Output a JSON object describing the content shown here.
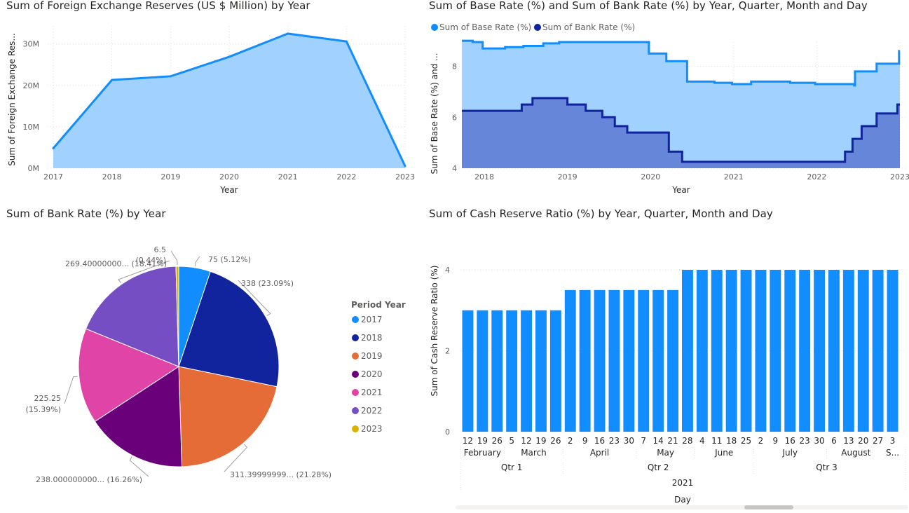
{
  "charts": [
    {
      "title": "Sum of Foreign Exchange Reserves (US $ Million) by Year",
      "xlabel": "Year",
      "ylabel": "Sum of Foreign Exchange Res..."
    },
    {
      "title": "Sum of Base Rate (%) and Sum of Bank Rate (%) by Year, Quarter, Month and Day",
      "xlabel": "Year",
      "ylabel": "Sum of Base Rate (%) and ...",
      "legend": [
        "Sum of Base Rate (%)",
        "Sum of Bank Rate (%)"
      ]
    },
    {
      "title": "Sum of Bank Rate (%) by Year",
      "legend_title": "Period Year"
    },
    {
      "title": "Sum of Cash Reserve Ratio (%) by Year, Quarter, Month and Day",
      "xlabel": "Day",
      "ylabel": "Sum of Cash Reserve Ratio (%)"
    }
  ],
  "chart_data": [
    {
      "type": "area",
      "title": "Sum of Foreign Exchange Reserves (US $ Million) by Year",
      "x": [
        "2017",
        "2018",
        "2019",
        "2020",
        "2021",
        "2022",
        "2023"
      ],
      "y_ticks": [
        "0M",
        "10M",
        "20M",
        "30M"
      ],
      "series": [
        {
          "values": [
            4800000,
            21300000,
            22200000,
            26900000,
            32500000,
            30600000,
            500000
          ]
        }
      ],
      "xlabel": "Year",
      "ylabel": "Sum of Foreign Exchange Res...",
      "ylim": [
        0,
        33000000
      ],
      "colors": {
        "line": "#118DFF",
        "fill": "#A0D1FF"
      }
    },
    {
      "type": "area",
      "title": "Sum of Base Rate (%) and Sum of Bank Rate (%) by Year, Quarter, Month and Day",
      "xlabel": "Year",
      "ylabel": "Sum of Base Rate (%) and ...",
      "x_ticks": [
        "2018",
        "2019",
        "2020",
        "2021",
        "2022",
        "2023"
      ],
      "y_ticks": [
        "4",
        "6",
        "8"
      ],
      "ylim": [
        4,
        9.5
      ],
      "legend_position": "top-left",
      "series": [
        {
          "name": "Sum of Base Rate (%)",
          "color": "#118DFF",
          "points": [
            [
              2017.73,
              9.0
            ],
            [
              2017.86,
              8.95
            ],
            [
              2017.98,
              8.7
            ],
            [
              2018.25,
              8.75
            ],
            [
              2018.47,
              8.8
            ],
            [
              2018.71,
              8.9
            ],
            [
              2018.9,
              8.95
            ],
            [
              2019.45,
              8.95
            ],
            [
              2019.98,
              8.5
            ],
            [
              2020.19,
              8.2
            ],
            [
              2020.44,
              7.4
            ],
            [
              2020.77,
              7.35
            ],
            [
              2020.98,
              7.3
            ],
            [
              2021.21,
              7.4
            ],
            [
              2021.68,
              7.35
            ],
            [
              2021.98,
              7.3
            ],
            [
              2022.45,
              7.25
            ],
            [
              2022.46,
              7.8
            ],
            [
              2022.72,
              8.1
            ],
            [
              2022.99,
              8.6
            ]
          ]
        },
        {
          "name": "Sum of Bank Rate (%)",
          "color": "#12239E",
          "points": [
            [
              2017.73,
              6.25
            ],
            [
              2018.45,
              6.5
            ],
            [
              2018.58,
              6.75
            ],
            [
              2019.0,
              6.5
            ],
            [
              2019.22,
              6.25
            ],
            [
              2019.42,
              6.0
            ],
            [
              2019.57,
              5.65
            ],
            [
              2019.72,
              5.4
            ],
            [
              2020.22,
              4.65
            ],
            [
              2020.38,
              4.25
            ],
            [
              2022.34,
              4.65
            ],
            [
              2022.43,
              5.15
            ],
            [
              2022.54,
              5.65
            ],
            [
              2022.72,
              6.15
            ],
            [
              2022.97,
              6.5
            ]
          ]
        }
      ]
    },
    {
      "type": "pie",
      "title": "Sum of Bank Rate (%) by Year",
      "legend_title": "Period Year",
      "legend_position": "right",
      "slices": [
        {
          "label": "2017",
          "value": 75,
          "text": "75 (5.12%)",
          "color": "#118DFF"
        },
        {
          "label": "2018",
          "value": 338,
          "text": "338 (23.09%)",
          "color": "#12239E"
        },
        {
          "label": "2019",
          "value": 311.39999999,
          "text": "311.39999999... (21.28%)",
          "color": "#E66C37"
        },
        {
          "label": "2020",
          "value": 238.0,
          "text": "238.000000000... (16.26%)",
          "color": "#6B007B"
        },
        {
          "label": "2021",
          "value": 225.25,
          "text_line1": "225.25",
          "text_line2": "(15.39%)",
          "color": "#E044A7"
        },
        {
          "label": "2022",
          "value": 269.4,
          "text": "269.40000000... (18.41%)",
          "color": "#744EC2"
        },
        {
          "label": "2023",
          "value": 6.5,
          "text_line1": "6.5",
          "text_line2": "(0.44%)",
          "color": "#D9B300"
        }
      ]
    },
    {
      "type": "bar",
      "title": "Sum of Cash Reserve Ratio (%) by Year, Quarter, Month and Day",
      "xlabel": "Day",
      "ylabel": "Sum of Cash Reserve Ratio (%)",
      "ylim": [
        0,
        4
      ],
      "y_ticks": [
        "0",
        "2",
        "4"
      ],
      "color": "#118DFF",
      "categories": [
        "12",
        "19",
        "26",
        "5",
        "12",
        "19",
        "26",
        "2",
        "9",
        "16",
        "23",
        "30",
        "7",
        "14",
        "21",
        "28",
        "4",
        "11",
        "18",
        "25",
        "2",
        "9",
        "16",
        "23",
        "30",
        "6",
        "13",
        "20",
        "27",
        "3"
      ],
      "values": [
        3,
        3,
        3,
        3,
        3,
        3,
        3,
        3.5,
        3.5,
        3.5,
        3.5,
        3.5,
        3.5,
        3.5,
        3.5,
        4,
        4,
        4,
        4,
        4,
        4,
        4,
        4,
        4,
        4,
        4,
        4,
        4,
        4,
        4
      ],
      "months": [
        {
          "label": "February",
          "start": 0,
          "end": 3
        },
        {
          "label": "March",
          "start": 3,
          "end": 7
        },
        {
          "label": "April",
          "start": 7,
          "end": 12
        },
        {
          "label": "May",
          "start": 12,
          "end": 16
        },
        {
          "label": "June",
          "start": 16,
          "end": 20
        },
        {
          "label": "July",
          "start": 20,
          "end": 25
        },
        {
          "label": "August",
          "start": 25,
          "end": 29
        },
        {
          "label": "S...",
          "start": 29,
          "end": 30
        }
      ],
      "quarters": [
        {
          "label": "Qtr 1",
          "start": 0,
          "end": 7
        },
        {
          "label": "Qtr 2",
          "start": 7,
          "end": 20
        },
        {
          "label": "Qtr 3",
          "start": 20,
          "end": 30
        }
      ],
      "year": "2021"
    }
  ]
}
